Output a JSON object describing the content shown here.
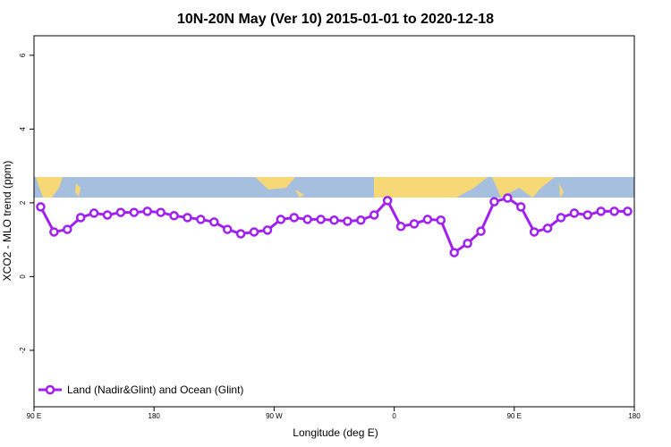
{
  "chart_data": {
    "type": "line",
    "title": "10N-20N May (Ver 10)   2015-01-01 to 2020-12-18",
    "x_label": "Longitude (deg E)",
    "y_label": "XCO2 - MLO trend (ppm)",
    "x": [
      95,
      105,
      115,
      125,
      135,
      145,
      155,
      165,
      175,
      185,
      195,
      205,
      215,
      225,
      235,
      245,
      255,
      265,
      275,
      285,
      295,
      305,
      315,
      325,
      335,
      345,
      355,
      365,
      375,
      385,
      395,
      405,
      415,
      425,
      435,
      445,
      455,
      465,
      475,
      485,
      495,
      505,
      515,
      525,
      535
    ],
    "series": [
      {
        "name": "Land (Nadir&Glint) and Ocean (Glint)",
        "color": "#a020f0",
        "values": [
          1.89,
          1.21,
          1.28,
          1.6,
          1.72,
          1.67,
          1.74,
          1.74,
          1.77,
          1.74,
          1.65,
          1.6,
          1.55,
          1.48,
          1.28,
          1.16,
          1.21,
          1.26,
          1.55,
          1.6,
          1.55,
          1.55,
          1.53,
          1.5,
          1.53,
          1.67,
          2.06,
          1.36,
          1.43,
          1.55,
          1.53,
          0.65,
          0.9,
          1.23,
          2.03,
          2.13,
          1.89,
          1.21,
          1.31,
          1.6,
          1.72,
          1.67,
          1.77,
          1.77,
          1.77
        ]
      }
    ],
    "xlim": [
      90,
      540
    ],
    "xticks": [
      {
        "value": 90,
        "label": "90 E"
      },
      180,
      {
        "value": 270,
        "label": "90 W"
      },
      {
        "value": 360,
        "label": "0"
      },
      {
        "value": 450,
        "label": "90 E"
      },
      {
        "value": 540,
        "label": "180"
      }
    ],
    "ylim": [
      -3.53,
      6.53
    ],
    "yticks": [
      -2,
      0,
      2,
      4,
      6
    ],
    "legend": "bottom-left"
  }
}
